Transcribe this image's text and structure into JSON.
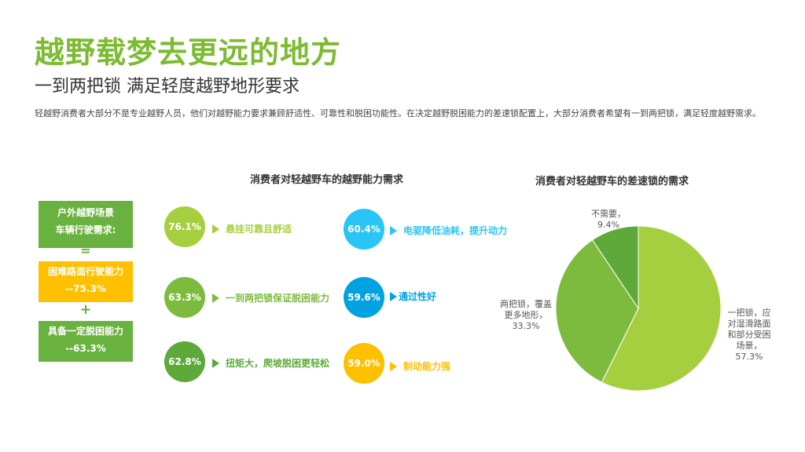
{
  "header": {
    "title": "越野载梦去更远的地方",
    "subtitle": "一到两把锁 满足轻度越野地形要求",
    "description": "轻越野消费者大部分不是专业越野人员，他们对越野能力要求兼顾舒适性、可靠性和脱困功能性。在决定越野脱困能力的差速锁配置上，大部分消费者希望有一到两把锁，满足轻度越野需求。"
  },
  "left_section": {
    "title": "消费者对轻越野车的越野能力需求",
    "scenario_line1": "户外越野场景",
    "scenario_line2": "车辆行驶需求:",
    "equals": "=",
    "need1_label": "困难路面行驶能力",
    "need1_value": "--75.3%",
    "plus": "+",
    "need2_label": "具备一定脱困能力",
    "need2_value": "--63.3%"
  },
  "colors": {
    "green_dark": "#6ab23f",
    "green_light": "#a6cf3f",
    "cyan": "#29c5f6",
    "blue": "#00a3e0",
    "yellow": "#ffc000"
  },
  "chart_data": [
    {
      "type": "bubble_list",
      "title": "消费者对轻越野车的越野能力需求",
      "items": [
        {
          "percent": "76.1%",
          "value": 76.1,
          "label": "悬挂可靠且舒适",
          "color": "#a6cf3f"
        },
        {
          "percent": "63.3%",
          "value": 63.3,
          "label": "一到两把锁保证脱困能力",
          "color": "#7dbb3f"
        },
        {
          "percent": "62.8%",
          "value": 62.8,
          "label": "扭矩大，爬坡脱困更轻松",
          "color": "#5ea93a"
        },
        {
          "percent": "60.4%",
          "value": 60.4,
          "label": "电驱降低油耗，提升动力",
          "color": "#29c5f6"
        },
        {
          "percent": "59.6%",
          "value": 59.6,
          "label": "通过性好",
          "color": "#00a3e0"
        },
        {
          "percent": "59.0%",
          "value": 59.0,
          "label": "制动能力强",
          "color": "#ffc000"
        }
      ]
    },
    {
      "type": "pie",
      "title": "消费者对轻越野车的差速锁的需求",
      "slices": [
        {
          "label": "一把锁，应对湿滑路面和部分受困场景，",
          "value": 57.3,
          "percent": "57.3%",
          "color": "#a6cf3f"
        },
        {
          "label": "两把锁，覆盖更多地形，",
          "value": 33.3,
          "percent": "33.3%",
          "color": "#7dbb3f"
        },
        {
          "label": "不需要，",
          "value": 9.4,
          "percent": "9.4%",
          "color": "#5ea93a"
        }
      ]
    }
  ]
}
